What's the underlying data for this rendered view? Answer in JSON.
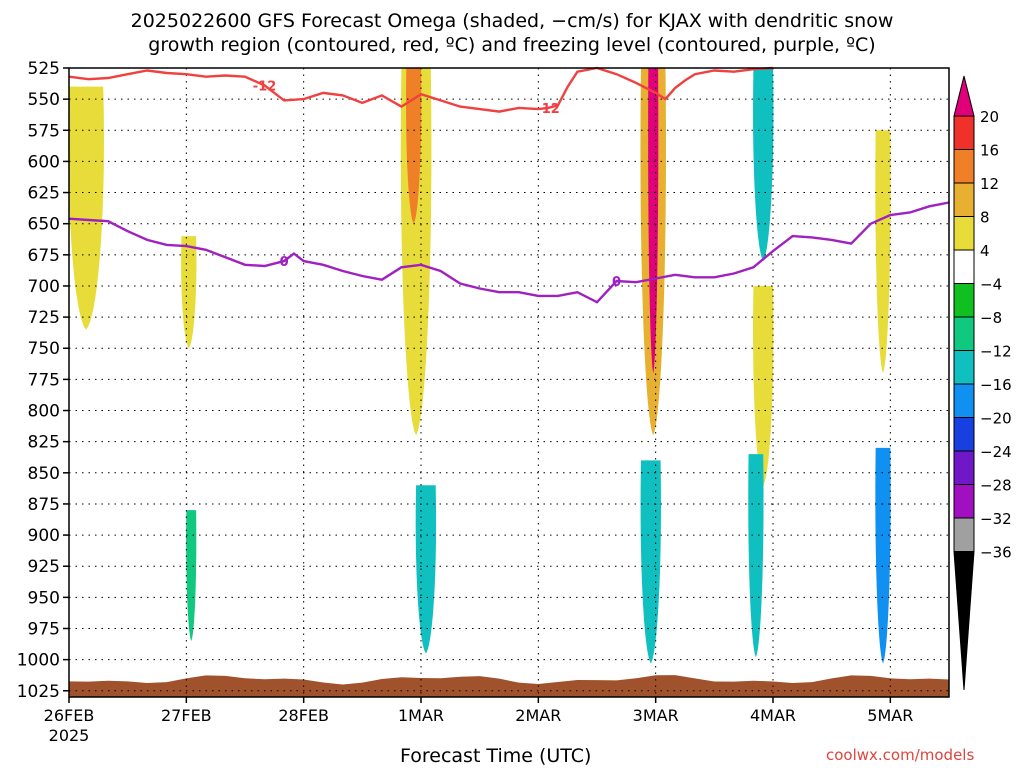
{
  "title_line1": "2025022600 GFS Forecast Omega (shaded, −cm/s) for KJAX with dendritic snow",
  "title_line2": "growth region (contoured, red, ºC) and freezing level (contoured, purple, ºC)",
  "xlabel": "Forecast Time (UTC)",
  "credit": "coolwx.com/models",
  "chart_data": {
    "type": "heatmap",
    "y_axis": {
      "label": "",
      "ticks": [
        525,
        550,
        575,
        600,
        625,
        650,
        675,
        700,
        725,
        750,
        775,
        800,
        825,
        850,
        875,
        900,
        925,
        950,
        975,
        1000,
        1025
      ],
      "range": [
        525,
        1030
      ],
      "inverted": true
    },
    "x_axis": {
      "ticks": [
        "26FEB",
        "27FEB",
        "28FEB",
        "1MAR",
        "2MAR",
        "3MAR",
        "4MAR",
        "5MAR"
      ],
      "tick_hours": [
        0,
        24,
        48,
        72,
        96,
        120,
        144,
        168
      ],
      "range_hours": [
        0,
        180
      ],
      "sublabel": "2025"
    },
    "grid": true,
    "colorbar": {
      "levels": [
        20,
        16,
        12,
        8,
        4,
        -4,
        -8,
        -12,
        -16,
        -20,
        -24,
        -28,
        -32,
        -36
      ],
      "colors": [
        "#e0007a",
        "#f0302a",
        "#f08028",
        "#e8b030",
        "#e8dc3a",
        "#ffffff",
        "#10c020",
        "#10c880",
        "#10c0c0",
        "#1090f0",
        "#1840e0",
        "#7018c8",
        "#a010c0",
        "#a0a0a0",
        "#000000"
      ]
    },
    "contours": [
      {
        "name": "-12",
        "color": "#f04040",
        "points": [
          [
            0,
            532
          ],
          [
            4,
            534
          ],
          [
            8,
            533
          ],
          [
            12,
            530
          ],
          [
            16,
            527
          ],
          [
            20,
            529
          ],
          [
            24,
            530
          ],
          [
            28,
            532
          ],
          [
            32,
            531
          ],
          [
            36,
            532
          ],
          [
            40,
            539
          ],
          [
            44,
            551
          ],
          [
            48,
            550
          ],
          [
            52,
            545
          ],
          [
            56,
            547
          ],
          [
            60,
            553
          ],
          [
            64,
            547
          ],
          [
            68,
            556
          ],
          [
            72,
            546
          ],
          [
            76,
            551
          ],
          [
            80,
            556
          ],
          [
            84,
            558
          ],
          [
            88,
            560
          ],
          [
            92,
            557
          ],
          [
            96,
            558
          ],
          [
            98,
            557
          ],
          [
            100,
            555
          ],
          [
            102,
            540
          ],
          [
            104,
            528
          ],
          [
            108,
            525
          ],
          [
            112,
            530
          ],
          [
            116,
            537
          ],
          [
            120,
            545
          ],
          [
            122,
            550
          ],
          [
            124,
            541
          ],
          [
            126,
            535
          ],
          [
            128,
            530
          ],
          [
            132,
            527
          ],
          [
            136,
            528
          ],
          [
            140,
            526
          ],
          [
            144,
            525
          ]
        ]
      },
      {
        "name": "0",
        "color": "#a020c0",
        "points": [
          [
            0,
            646
          ],
          [
            4,
            647
          ],
          [
            8,
            648
          ],
          [
            12,
            656
          ],
          [
            16,
            663
          ],
          [
            20,
            667
          ],
          [
            24,
            668
          ],
          [
            28,
            671
          ],
          [
            32,
            677
          ],
          [
            36,
            683
          ],
          [
            40,
            684
          ],
          [
            44,
            680
          ],
          [
            46,
            674
          ],
          [
            48,
            680
          ],
          [
            52,
            683
          ],
          [
            56,
            688
          ],
          [
            60,
            692
          ],
          [
            64,
            695
          ],
          [
            68,
            685
          ],
          [
            72,
            683
          ],
          [
            76,
            688
          ],
          [
            80,
            698
          ],
          [
            84,
            702
          ],
          [
            88,
            705
          ],
          [
            92,
            705
          ],
          [
            96,
            708
          ],
          [
            100,
            708
          ],
          [
            104,
            705
          ],
          [
            108,
            713
          ],
          [
            112,
            696
          ],
          [
            116,
            697
          ],
          [
            120,
            694
          ],
          [
            124,
            691
          ],
          [
            128,
            693
          ],
          [
            132,
            693
          ],
          [
            136,
            690
          ],
          [
            140,
            685
          ],
          [
            144,
            672
          ],
          [
            148,
            660
          ],
          [
            152,
            661
          ],
          [
            156,
            663
          ],
          [
            160,
            666
          ],
          [
            164,
            650
          ],
          [
            168,
            643
          ],
          [
            172,
            641
          ],
          [
            176,
            636
          ],
          [
            180,
            633
          ]
        ]
      }
    ],
    "series": [
      {
        "x_start": 0,
        "x_end": 7,
        "p_top": 540,
        "p_bot": 735,
        "value": 5
      },
      {
        "x_start": 23,
        "x_end": 26,
        "p_top": 660,
        "p_bot": 750,
        "value": 5
      },
      {
        "x_start": 68,
        "x_end": 74,
        "p_top": 525,
        "p_bot": 820,
        "value": 6
      },
      {
        "x_start": 69,
        "x_end": 72,
        "p_top": 525,
        "p_bot": 650,
        "value": 12
      },
      {
        "x_start": 117,
        "x_end": 122,
        "p_top": 525,
        "p_bot": 820,
        "value": 8
      },
      {
        "x_start": 118.5,
        "x_end": 120.5,
        "p_top": 525,
        "p_bot": 770,
        "value": 20
      },
      {
        "x_start": 140,
        "x_end": 144,
        "p_top": 525,
        "p_bot": 680,
        "value": -12
      },
      {
        "x_start": 140,
        "x_end": 144,
        "p_top": 700,
        "p_bot": 860,
        "value": 5
      },
      {
        "x_start": 165,
        "x_end": 168,
        "p_top": 575,
        "p_bot": 770,
        "value": 5
      },
      {
        "x_start": 24,
        "x_end": 26,
        "p_top": 880,
        "p_bot": 985,
        "value": -10
      },
      {
        "x_start": 71,
        "x_end": 75,
        "p_top": 860,
        "p_bot": 995,
        "value": -12
      },
      {
        "x_start": 117,
        "x_end": 121,
        "p_top": 840,
        "p_bot": 1003,
        "value": -14
      },
      {
        "x_start": 139,
        "x_end": 142,
        "p_top": 835,
        "p_bot": 998,
        "value": -12
      },
      {
        "x_start": 165,
        "x_end": 168,
        "p_top": 830,
        "p_bot": 1003,
        "value": -18
      }
    ]
  }
}
